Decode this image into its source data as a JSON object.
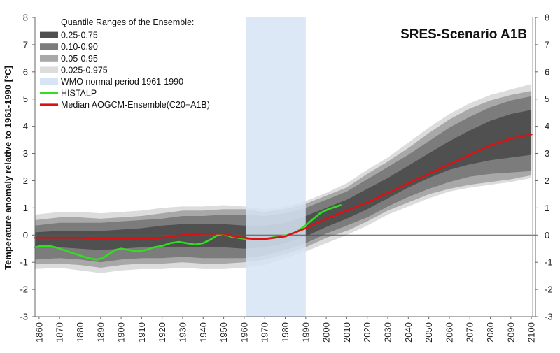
{
  "chart_data": {
    "type": "area",
    "title": "SRES-Scenario A1B",
    "ylabel": "Temperature anomaly relative to 1961-1990 [°C]",
    "xlabel": "",
    "xlim": [
      1858,
      2102
    ],
    "ylim": [
      -3,
      8
    ],
    "y_ticks": [
      -3,
      -2,
      -1,
      0,
      1,
      2,
      3,
      4,
      5,
      6,
      7,
      8
    ],
    "x_ticks": [
      1860,
      1870,
      1880,
      1890,
      1900,
      1910,
      1920,
      1930,
      1940,
      1950,
      1960,
      1970,
      1980,
      1990,
      2000,
      2010,
      2020,
      2030,
      2040,
      2050,
      2060,
      2070,
      2080,
      2090,
      2100
    ],
    "grid": false,
    "legend_placement": "top-left",
    "legend_title": "Quantile Ranges of the Ensemble:",
    "wmo_period": {
      "name": "WMO normal period 1961-1990",
      "start": 1961,
      "end": 1990,
      "color": "#d6e4f5"
    },
    "x": [
      1858,
      1870,
      1880,
      1890,
      1900,
      1910,
      1920,
      1930,
      1940,
      1950,
      1960,
      1970,
      1980,
      1990,
      2000,
      2010,
      2020,
      2030,
      2040,
      2050,
      2060,
      2070,
      2080,
      2090,
      2100
    ],
    "bands": [
      {
        "name": "0.025-0.975",
        "color": "#dcdcdc",
        "lower": [
          -1.25,
          -1.2,
          -1.3,
          -1.4,
          -1.3,
          -1.25,
          -1.25,
          -1.2,
          -1.25,
          -1.25,
          -1.2,
          -1.1,
          -0.85,
          -0.6,
          -0.3,
          0.0,
          0.35,
          0.75,
          1.05,
          1.35,
          1.6,
          1.75,
          1.85,
          1.95,
          2.1
        ],
        "upper": [
          0.75,
          0.85,
          0.85,
          0.8,
          0.85,
          0.9,
          1.0,
          1.05,
          1.05,
          1.1,
          1.05,
          0.95,
          1.05,
          1.25,
          1.55,
          1.9,
          2.4,
          2.85,
          3.4,
          3.95,
          4.45,
          4.85,
          5.15,
          5.35,
          5.55
        ]
      },
      {
        "name": "0.05-0.95",
        "color": "#a8a8a8",
        "lower": [
          -1.05,
          -1.05,
          -1.1,
          -1.2,
          -1.1,
          -1.05,
          -1.05,
          -1.0,
          -1.05,
          -1.05,
          -1.0,
          -0.9,
          -0.7,
          -0.45,
          -0.1,
          0.15,
          0.5,
          0.9,
          1.2,
          1.5,
          1.7,
          1.85,
          1.95,
          2.05,
          2.2
        ],
        "upper": [
          0.55,
          0.65,
          0.65,
          0.6,
          0.65,
          0.7,
          0.8,
          0.9,
          0.9,
          0.95,
          0.95,
          0.85,
          0.95,
          1.15,
          1.45,
          1.75,
          2.25,
          2.7,
          3.2,
          3.75,
          4.25,
          4.65,
          4.95,
          5.15,
          5.3
        ]
      },
      {
        "name": "0.10-0.90",
        "color": "#7c7c7c",
        "lower": [
          -0.9,
          -0.85,
          -0.9,
          -1.0,
          -0.9,
          -0.85,
          -0.85,
          -0.8,
          -0.85,
          -0.85,
          -0.85,
          -0.75,
          -0.55,
          -0.3,
          0.05,
          0.35,
          0.65,
          1.05,
          1.4,
          1.7,
          1.95,
          2.15,
          2.25,
          2.3,
          2.35
        ],
        "upper": [
          0.35,
          0.45,
          0.45,
          0.45,
          0.5,
          0.55,
          0.6,
          0.7,
          0.7,
          0.75,
          0.75,
          0.7,
          0.8,
          1.0,
          1.3,
          1.6,
          2.05,
          2.5,
          2.95,
          3.45,
          3.95,
          4.35,
          4.7,
          4.95,
          5.1
        ]
      },
      {
        "name": "0.25-0.75",
        "color": "#505050",
        "lower": [
          -0.45,
          -0.45,
          -0.5,
          -0.55,
          -0.5,
          -0.45,
          -0.45,
          -0.45,
          -0.45,
          -0.45,
          -0.5,
          -0.45,
          -0.3,
          -0.05,
          0.3,
          0.6,
          0.95,
          1.35,
          1.75,
          2.1,
          2.4,
          2.6,
          2.75,
          2.85,
          2.95
        ],
        "upper": [
          0.1,
          0.15,
          0.15,
          0.15,
          0.2,
          0.25,
          0.35,
          0.4,
          0.4,
          0.4,
          0.35,
          0.35,
          0.45,
          0.7,
          1.0,
          1.3,
          1.7,
          2.1,
          2.55,
          3.0,
          3.45,
          3.85,
          4.2,
          4.45,
          4.6
        ]
      }
    ],
    "series": [
      {
        "name": "HISTALP",
        "color": "#33dd22",
        "x": [
          1858,
          1861,
          1865,
          1868,
          1872,
          1876,
          1880,
          1884,
          1888,
          1891,
          1894,
          1897,
          1900,
          1904,
          1908,
          1912,
          1916,
          1920,
          1924,
          1928,
          1932,
          1936,
          1940,
          1944,
          1947,
          1950,
          1953,
          1957,
          1961,
          1965,
          1969,
          1973,
          1977,
          1981,
          1985,
          1989,
          1993,
          1997,
          2001,
          2005,
          2007
        ],
        "y": [
          -0.45,
          -0.4,
          -0.4,
          -0.45,
          -0.55,
          -0.65,
          -0.75,
          -0.85,
          -0.9,
          -0.85,
          -0.7,
          -0.55,
          -0.5,
          -0.55,
          -0.6,
          -0.55,
          -0.45,
          -0.4,
          -0.3,
          -0.25,
          -0.3,
          -0.35,
          -0.3,
          -0.15,
          0.0,
          0.05,
          -0.05,
          -0.1,
          -0.15,
          -0.15,
          -0.15,
          -0.1,
          -0.05,
          0.0,
          0.1,
          0.3,
          0.55,
          0.8,
          0.95,
          1.05,
          1.1
        ]
      },
      {
        "name": "Median AOGCM-Ensemble(C20+A1B)",
        "color": "#dd1111",
        "x": [
          1858,
          1870,
          1880,
          1890,
          1900,
          1910,
          1920,
          1930,
          1940,
          1945,
          1950,
          1955,
          1960,
          1965,
          1970,
          1980,
          1990,
          2000,
          2010,
          2020,
          2030,
          2040,
          2050,
          2060,
          2070,
          2080,
          2090,
          2100
        ],
        "y": [
          -0.1,
          -0.1,
          -0.1,
          -0.15,
          -0.15,
          -0.15,
          -0.1,
          0.0,
          0.05,
          0.05,
          0.05,
          -0.05,
          -0.1,
          -0.15,
          -0.15,
          -0.05,
          0.25,
          0.6,
          0.9,
          1.2,
          1.55,
          1.9,
          2.25,
          2.6,
          2.95,
          3.3,
          3.55,
          3.7
        ]
      }
    ]
  }
}
